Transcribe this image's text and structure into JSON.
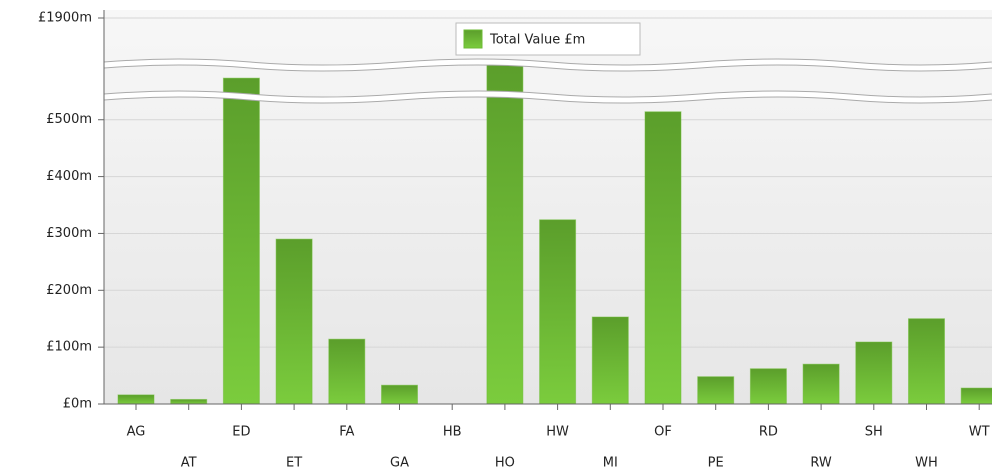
{
  "chart_data": {
    "type": "bar",
    "categories": [
      "AG",
      "AT",
      "ED",
      "ET",
      "FA",
      "GA",
      "HB",
      "HO",
      "HW",
      "MI",
      "OF",
      "PE",
      "RD",
      "RW",
      "SH",
      "WH",
      "WT"
    ],
    "series": [
      {
        "name": "Total Value £m",
        "color": "#6cbb34",
        "values": [
          16,
          8,
          870,
          290,
          114,
          33,
          0,
          1120,
          324,
          153,
          514,
          48,
          62,
          70,
          109,
          150,
          28
        ]
      }
    ],
    "ylim": [
      0,
      1900
    ],
    "axis_break": [
      540,
      1100
    ],
    "yticks": [
      {
        "value": 0,
        "label": "£0m"
      },
      {
        "value": 100,
        "label": "£100m"
      },
      {
        "value": 200,
        "label": "£200m"
      },
      {
        "value": 300,
        "label": "£300m"
      },
      {
        "value": 400,
        "label": "£400m"
      },
      {
        "value": 500,
        "label": "£500m"
      },
      {
        "value": 1900,
        "label": "£1900m"
      }
    ],
    "grid": true,
    "legend": "top"
  }
}
